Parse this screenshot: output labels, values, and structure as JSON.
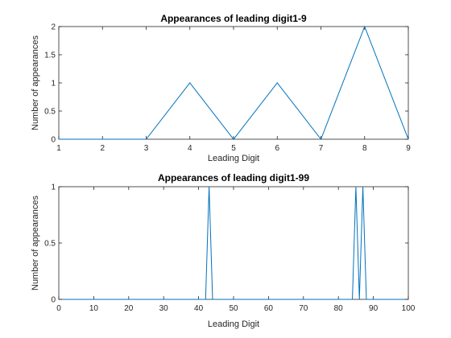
{
  "chart_data": [
    {
      "type": "line",
      "title": "Appearances of leading digit1-9",
      "xlabel": "Leading Digit",
      "ylabel": "Number of appearances",
      "xlim": [
        1,
        9
      ],
      "ylim": [
        0,
        2
      ],
      "xticks": [
        1,
        2,
        3,
        4,
        5,
        6,
        7,
        8,
        9
      ],
      "yticks": [
        0,
        0.5,
        1,
        1.5,
        2
      ],
      "xtick_labels": [
        "1",
        "2",
        "3",
        "4",
        "5",
        "6",
        "7",
        "8",
        "9"
      ],
      "ytick_labels": [
        "0",
        "0.5",
        "1",
        "1.5",
        "2"
      ],
      "grid": false,
      "color": "#0072BD",
      "x": [
        1,
        2,
        3,
        4,
        5,
        6,
        7,
        8,
        9
      ],
      "y": [
        0,
        0,
        0,
        1,
        0,
        1,
        0,
        2,
        0
      ]
    },
    {
      "type": "line",
      "title": "Appearances of leading digit1-99",
      "xlabel": "Leading Digit",
      "ylabel": "Number of appearances",
      "xlim": [
        0,
        100
      ],
      "ylim": [
        0,
        1
      ],
      "xticks": [
        0,
        10,
        20,
        30,
        40,
        50,
        60,
        70,
        80,
        90,
        100
      ],
      "yticks": [
        0,
        0.5,
        1
      ],
      "xtick_labels": [
        "0",
        "10",
        "20",
        "30",
        "40",
        "50",
        "60",
        "70",
        "80",
        "90",
        "100"
      ],
      "ytick_labels": [
        "0",
        "0.5",
        "1"
      ],
      "grid": false,
      "color": "#0072BD",
      "x": [
        1,
        42,
        43,
        44,
        84,
        85,
        86,
        87,
        88,
        99
      ],
      "y": [
        0,
        0,
        1,
        0,
        0,
        1,
        0,
        1,
        0,
        0
      ]
    }
  ]
}
